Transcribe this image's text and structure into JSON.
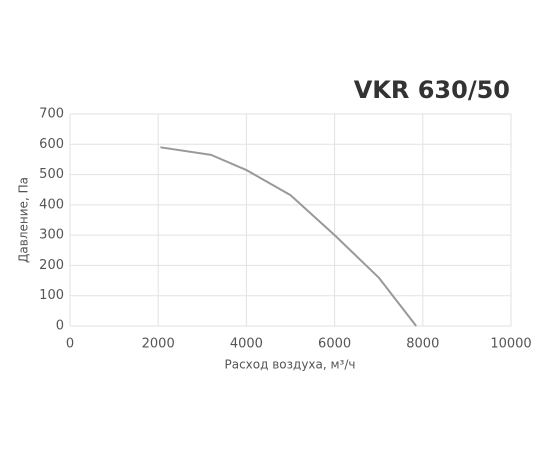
{
  "chart_data": {
    "type": "line",
    "title": "VKR 630/50",
    "x_label": "Расход воздуха, м³/ч",
    "y_label": "Давление, Па",
    "x": [
      2050,
      3200,
      4000,
      5000,
      6000,
      7000,
      7850
    ],
    "series": [
      {
        "name": "VKR 630/50",
        "color": "#999999",
        "values": [
          590,
          565,
          515,
          432,
          300,
          160,
          0
        ]
      }
    ],
    "xlim": [
      0,
      10000
    ],
    "xticks": [
      0,
      2000,
      4000,
      6000,
      8000,
      10000
    ],
    "ylim": [
      0,
      700
    ],
    "yticks": [
      0,
      100,
      200,
      300,
      400,
      500,
      600,
      700
    ],
    "grid": true
  }
}
